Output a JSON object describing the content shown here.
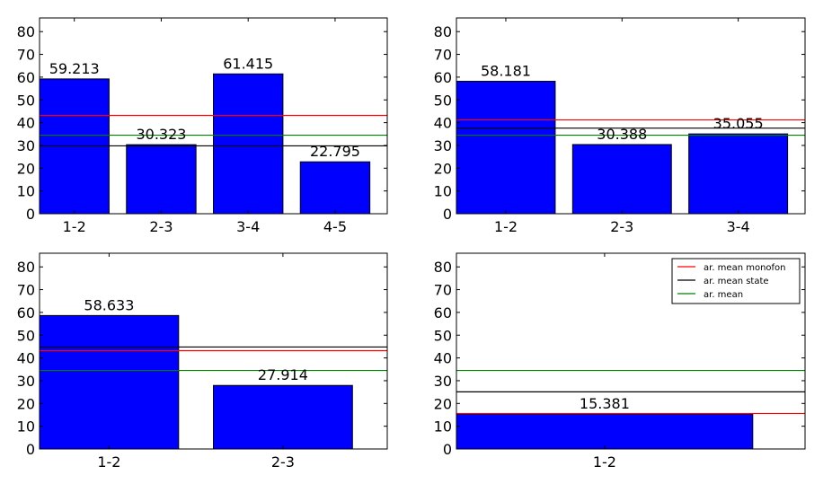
{
  "chart_data": [
    {
      "type": "bar",
      "categories": [
        "1-2",
        "2-3",
        "3-4",
        "4-5"
      ],
      "values": [
        59.213,
        30.323,
        61.415,
        22.795
      ],
      "value_labels": [
        "59.213",
        "30.323",
        "61.415",
        "22.795"
      ],
      "ylim": [
        0,
        86
      ],
      "yticks": [
        "0",
        "10",
        "20",
        "30",
        "40",
        "50",
        "60",
        "70",
        "80"
      ],
      "bar_color": "#0000ff",
      "reference_lines": [
        {
          "value": 43.2,
          "color": "#ff0000"
        },
        {
          "value": 29.8,
          "color": "#000000"
        },
        {
          "value": 34.5,
          "color": "#008000"
        }
      ],
      "grid": false,
      "legend": false
    },
    {
      "type": "bar",
      "categories": [
        "1-2",
        "2-3",
        "3-4"
      ],
      "values": [
        58.181,
        30.388,
        35.055
      ],
      "value_labels": [
        "58.181",
        "30.388",
        "35.055"
      ],
      "ylim": [
        0,
        86
      ],
      "yticks": [
        "0",
        "10",
        "20",
        "30",
        "40",
        "50",
        "60",
        "70",
        "80"
      ],
      "bar_color": "#0000ff",
      "reference_lines": [
        {
          "value": 41.2,
          "color": "#ff0000"
        },
        {
          "value": 37.6,
          "color": "#000000"
        },
        {
          "value": 34.5,
          "color": "#008000"
        }
      ],
      "grid": false,
      "legend": false
    },
    {
      "type": "bar",
      "categories": [
        "1-2",
        "2-3"
      ],
      "values": [
        58.633,
        27.914
      ],
      "value_labels": [
        "58.633",
        "27.914"
      ],
      "ylim": [
        0,
        86
      ],
      "yticks": [
        "0",
        "10",
        "20",
        "30",
        "40",
        "50",
        "60",
        "70",
        "80"
      ],
      "bar_color": "#0000ff",
      "reference_lines": [
        {
          "value": 43.2,
          "color": "#ff0000"
        },
        {
          "value": 44.8,
          "color": "#000000"
        },
        {
          "value": 34.5,
          "color": "#008000"
        }
      ],
      "grid": false,
      "legend": false
    },
    {
      "type": "bar",
      "categories": [
        "1-2"
      ],
      "values": [
        15.381
      ],
      "value_labels": [
        "15.381"
      ],
      "ylim": [
        0,
        86
      ],
      "yticks": [
        "0",
        "10",
        "20",
        "30",
        "40",
        "50",
        "60",
        "70",
        "80"
      ],
      "bar_color": "#0000ff",
      "reference_lines": [
        {
          "value": 15.6,
          "color": "#ff0000"
        },
        {
          "value": 25.1,
          "color": "#000000"
        },
        {
          "value": 34.5,
          "color": "#008000"
        }
      ],
      "grid": false,
      "legend": true,
      "legend_position": "top-right",
      "legend_entries": [
        {
          "label": "ar. mean monofon",
          "color": "#ff0000"
        },
        {
          "label": "ar. mean state",
          "color": "#000000"
        },
        {
          "label": "ar. mean",
          "color": "#008000"
        }
      ]
    }
  ]
}
